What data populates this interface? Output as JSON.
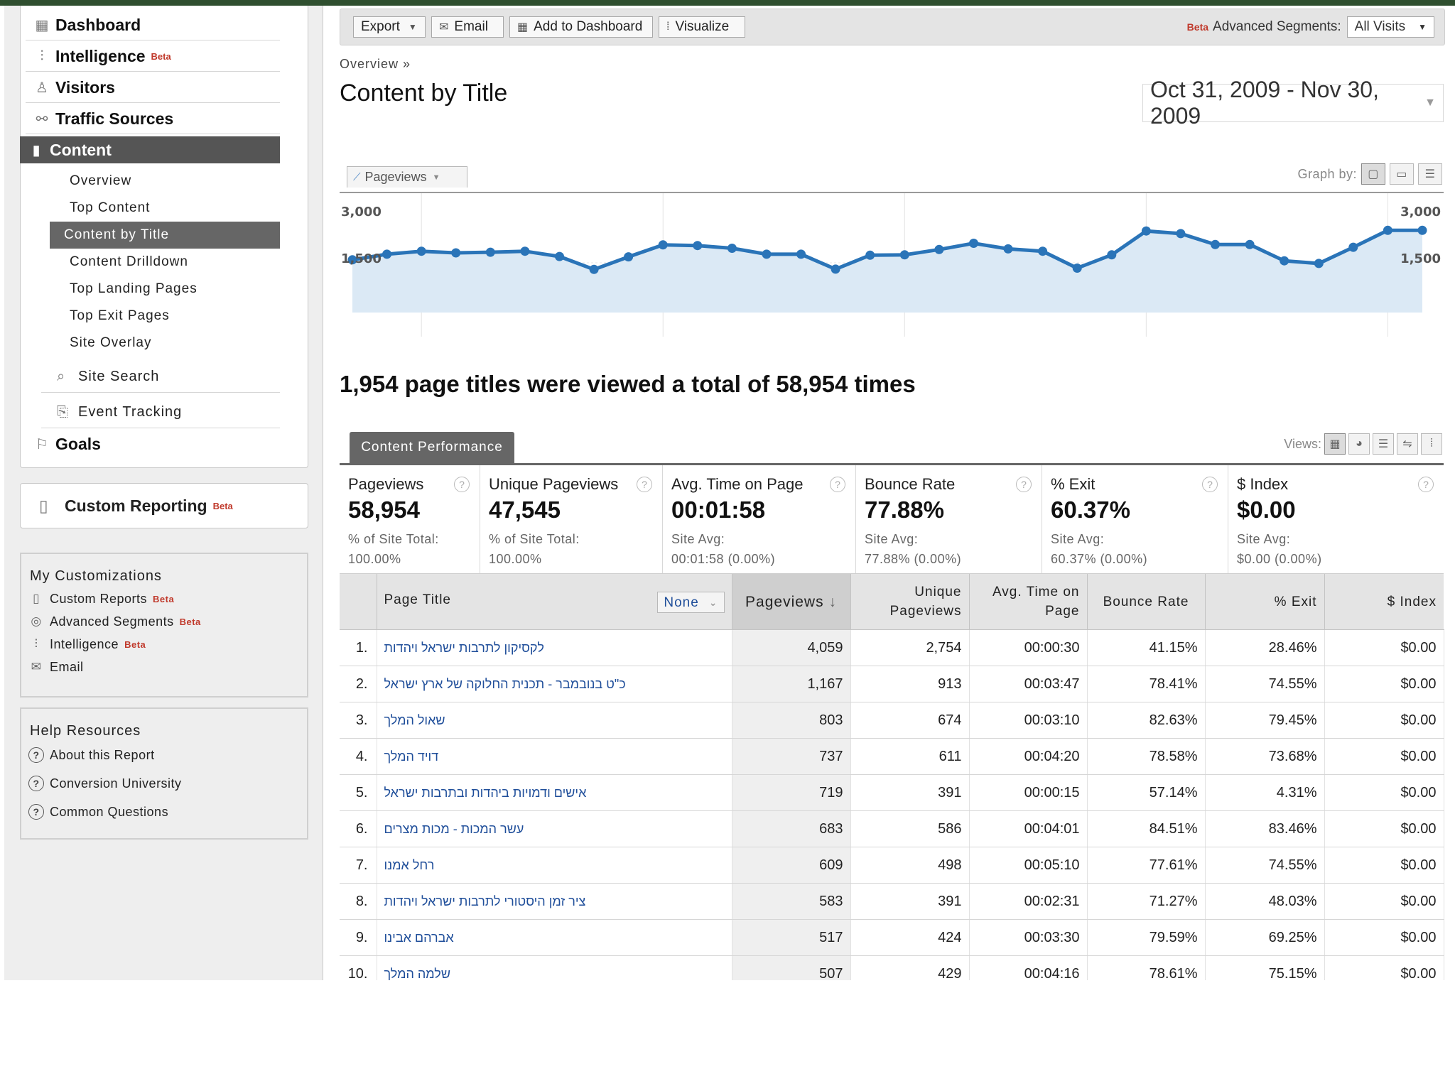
{
  "sidebar": {
    "nav": [
      {
        "label": "Dashboard",
        "icon": "dashboard-icon"
      },
      {
        "label": "Intelligence",
        "badge": "Beta",
        "icon": "intelligence-icon"
      },
      {
        "label": "Visitors",
        "icon": "visitors-icon"
      },
      {
        "label": "Traffic Sources",
        "icon": "traffic-sources-icon"
      },
      {
        "label": "Content",
        "icon": "content-icon",
        "active": true
      }
    ],
    "content_sub": [
      "Overview",
      "Top Content",
      "Content by Title",
      "Content Drilldown",
      "Top Landing Pages",
      "Top Exit Pages",
      "Site Overlay"
    ],
    "site_search": "Site Search",
    "event_tracking": "Event Tracking",
    "goals": "Goals",
    "custom_reporting": {
      "label": "Custom Reporting",
      "badge": "Beta"
    },
    "my_customizations": {
      "title": "My Customizations",
      "items": [
        {
          "label": "Custom Reports",
          "badge": "Beta"
        },
        {
          "label": "Advanced Segments",
          "badge": "Beta"
        },
        {
          "label": "Intelligence",
          "badge": "Beta"
        },
        {
          "label": "Email",
          "badge": ""
        }
      ]
    },
    "help": {
      "title": "Help Resources",
      "items": [
        "About this Report",
        "Conversion University",
        "Common Questions"
      ]
    }
  },
  "toolbar": {
    "export": "Export",
    "email": "Email",
    "add_to_dashboard": "Add to Dashboard",
    "visualize": "Visualize",
    "segments_badge": "Beta",
    "segments_label": "Advanced Segments:",
    "segments_value": "All Visits"
  },
  "breadcrumb": "Overview »",
  "page_title": "Content by Title",
  "date_range": "Oct 31, 2009 - Nov 30, 2009",
  "graph": {
    "metric": "Pageviews",
    "graph_by_label": "Graph by:"
  },
  "chart_data": {
    "type": "area",
    "series": [
      {
        "name": "Pageviews",
        "values": [
          1590,
          1760,
          1850,
          1800,
          1820,
          1850,
          1690,
          1300,
          1680,
          2040,
          2020,
          1940,
          1760,
          1760,
          1310,
          1730,
          1740,
          1900,
          2090,
          1920,
          1850,
          1340,
          1740,
          2460,
          2380,
          2050,
          2050,
          1560,
          1480,
          1970,
          2480,
          2480
        ]
      }
    ],
    "yticks_left": [
      "3,000",
      "1,500"
    ],
    "yticks_right": [
      "3,000",
      "1,500"
    ],
    "ylim": [
      0,
      3000
    ],
    "grid": true,
    "color": "#2a74b8",
    "fill": "#dbe9f5"
  },
  "summary": "1,954 page titles were viewed a total of 58,954 times",
  "content_tab": "Content Performance",
  "views_label": "Views:",
  "scorecard": [
    {
      "label": "Pageviews",
      "value": "58,954",
      "sub1": "% of Site Total:",
      "sub2": "100.00%"
    },
    {
      "label": "Unique Pageviews",
      "value": "47,545",
      "sub1": "% of Site Total:",
      "sub2": "100.00%"
    },
    {
      "label": "Avg. Time on Page",
      "value": "00:01:58",
      "sub1": "Site Avg:",
      "sub2": "00:01:58 (0.00%)"
    },
    {
      "label": "Bounce Rate",
      "value": "77.88%",
      "sub1": "Site Avg:",
      "sub2": "77.88% (0.00%)"
    },
    {
      "label": "% Exit",
      "value": "60.37%",
      "sub1": "Site Avg:",
      "sub2": "60.37% (0.00%)"
    },
    {
      "label": "$ Index",
      "value": "$0.00",
      "sub1": "Site Avg:",
      "sub2": "$0.00 (0.00%)"
    }
  ],
  "table": {
    "headers": {
      "page_title": "Page Title",
      "secondary": "None",
      "pageviews": "Pageviews",
      "unique": "Unique Pageviews",
      "avg_time": "Avg. Time on Page",
      "bounce": "Bounce Rate",
      "exit": "% Exit",
      "index": "$ Index"
    },
    "rows": [
      {
        "n": "1.",
        "title": "לקסיקון לתרבות ישראל ויהדות",
        "pv": "4,059",
        "upv": "2,754",
        "time": "00:00:30",
        "bounce": "41.15%",
        "exit": "28.46%",
        "index": "$0.00"
      },
      {
        "n": "2.",
        "title": "כ\"ט בנובמבר - תכנית החלוקה של ארץ ישראל",
        "pv": "1,167",
        "upv": "913",
        "time": "00:03:47",
        "bounce": "78.41%",
        "exit": "74.55%",
        "index": "$0.00"
      },
      {
        "n": "3.",
        "title": "שאול המלך",
        "pv": "803",
        "upv": "674",
        "time": "00:03:10",
        "bounce": "82.63%",
        "exit": "79.45%",
        "index": "$0.00"
      },
      {
        "n": "4.",
        "title": "דויד המלך",
        "pv": "737",
        "upv": "611",
        "time": "00:04:20",
        "bounce": "78.58%",
        "exit": "73.68%",
        "index": "$0.00"
      },
      {
        "n": "5.",
        "title": "אישים ודמויות ביהדות ובתרבות ישראל",
        "pv": "719",
        "upv": "391",
        "time": "00:00:15",
        "bounce": "57.14%",
        "exit": "4.31%",
        "index": "$0.00"
      },
      {
        "n": "6.",
        "title": "עשר המכות - מכות מצרים",
        "pv": "683",
        "upv": "586",
        "time": "00:04:01",
        "bounce": "84.51%",
        "exit": "83.46%",
        "index": "$0.00"
      },
      {
        "n": "7.",
        "title": "רחל אמנו",
        "pv": "609",
        "upv": "498",
        "time": "00:05:10",
        "bounce": "77.61%",
        "exit": "74.55%",
        "index": "$0.00"
      },
      {
        "n": "8.",
        "title": "ציר זמן היסטורי לתרבות ישראל ויהדות",
        "pv": "583",
        "upv": "391",
        "time": "00:02:31",
        "bounce": "71.27%",
        "exit": "48.03%",
        "index": "$0.00"
      },
      {
        "n": "9.",
        "title": "אברהם אבינו",
        "pv": "517",
        "upv": "424",
        "time": "00:03:30",
        "bounce": "79.59%",
        "exit": "69.25%",
        "index": "$0.00"
      },
      {
        "n": "10.",
        "title": "שלמה המלך",
        "pv": "507",
        "upv": "429",
        "time": "00:04:16",
        "bounce": "78.61%",
        "exit": "75.15%",
        "index": "$0.00"
      }
    ]
  }
}
